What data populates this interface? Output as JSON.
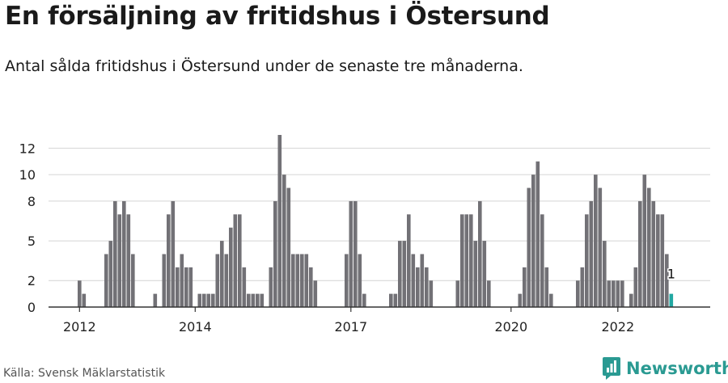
{
  "title": "En försäljning av fritidshus i Östersund",
  "subtitle": "Antal sålda fritidshus i Östersund under de senaste tre månaderna.",
  "source": "Källa: Svensk Mäklarstatistik",
  "brand": {
    "name": "Newsworthy",
    "icon": "newsworthy-logo-icon"
  },
  "colors": {
    "bar": "#727176",
    "highlight": "#22a8a2",
    "grid": "#d4d4d4",
    "axis": "#333333",
    "brand": "#2a9a92"
  },
  "chart_data": {
    "type": "bar",
    "title": "",
    "xlabel": "",
    "ylabel": "",
    "ylim": [
      0,
      13
    ],
    "yticks": [
      0,
      2,
      5,
      8,
      10,
      12
    ],
    "grid": true,
    "xtick_labels": [
      {
        "label": "2012",
        "index": 1
      },
      {
        "label": "2014",
        "index": 27
      },
      {
        "label": "2017",
        "index": 62
      },
      {
        "label": "2020",
        "index": 98
      },
      {
        "label": "2022",
        "index": 122
      }
    ],
    "values": [
      0,
      2,
      1,
      0,
      0,
      0,
      0,
      4,
      5,
      8,
      7,
      8,
      7,
      4,
      0,
      0,
      0,
      0,
      1,
      0,
      4,
      7,
      8,
      3,
      4,
      3,
      3,
      0,
      1,
      1,
      1,
      1,
      4,
      5,
      4,
      6,
      7,
      7,
      3,
      1,
      1,
      1,
      1,
      0,
      3,
      8,
      13,
      10,
      9,
      4,
      4,
      4,
      4,
      3,
      2,
      0,
      0,
      0,
      0,
      0,
      0,
      4,
      8,
      8,
      4,
      1,
      0,
      0,
      0,
      0,
      0,
      1,
      1,
      5,
      5,
      7,
      4,
      3,
      4,
      3,
      2,
      0,
      0,
      0,
      0,
      0,
      2,
      7,
      7,
      7,
      5,
      8,
      5,
      2,
      0,
      0,
      0,
      0,
      0,
      0,
      1,
      3,
      9,
      10,
      11,
      7,
      3,
      1,
      0,
      0,
      0,
      0,
      0,
      2,
      3,
      7,
      8,
      10,
      9,
      5,
      2,
      2,
      2,
      2,
      0,
      1,
      3,
      8,
      10,
      9,
      8,
      7,
      7,
      4,
      1
    ],
    "highlight_index": 134,
    "highlight_label": "1"
  }
}
